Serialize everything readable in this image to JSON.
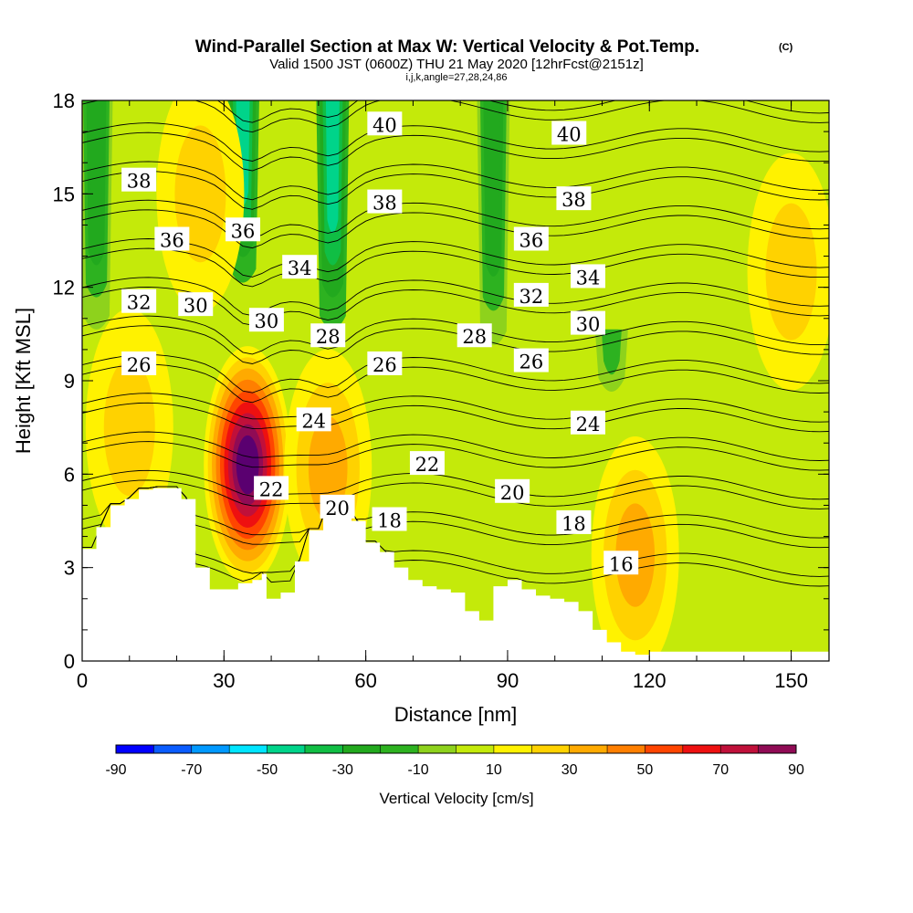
{
  "chart_data": {
    "type": "heatmap",
    "title": "Wind-Parallel Section at Max W: Vertical Velocity & Pot.Temp.",
    "title_mark": "(C)",
    "subtitle": "Valid 1500 JST (0600Z) THU 21 May 2020 [12hrFcst@2151z]",
    "subtitle2": "i,j,k,angle=27,28,24,86",
    "xlabel": "Distance [nm]",
    "ylabel": "Height [Kft MSL]",
    "xlim": [
      0,
      158
    ],
    "ylim": [
      0,
      18
    ],
    "xticks": [
      0,
      30,
      60,
      90,
      120,
      150
    ],
    "yticks": [
      0,
      3,
      6,
      9,
      12,
      15,
      18
    ],
    "colorbar": {
      "title": "Vertical Velocity [cm/s]",
      "ticks": [
        -90,
        -70,
        -50,
        -30,
        -10,
        10,
        30,
        50,
        70,
        90
      ],
      "levels": [
        -90,
        -80,
        -70,
        -60,
        -50,
        -40,
        -30,
        -20,
        -10,
        0,
        10,
        20,
        30,
        40,
        50,
        60,
        70,
        80,
        90
      ],
      "colors": [
        "#0000ff",
        "#0a5cff",
        "#0099ff",
        "#00e5ff",
        "#00d48a",
        "#10be44",
        "#22a91e",
        "#2db220",
        "#8ed21c",
        "#c4ea0a",
        "#fff200",
        "#ffd200",
        "#ffaa00",
        "#ff7f00",
        "#ff4500",
        "#ee1010",
        "#c0103a",
        "#900b55",
        "#5a0070"
      ]
    },
    "background_color": "#c4ea0a",
    "updraft_centers": [
      {
        "x": 35,
        "z": 6.3,
        "w": 85
      },
      {
        "x": 52,
        "z": 6.2,
        "w": 25
      },
      {
        "x": 117,
        "z": 3.4,
        "w": 25
      },
      {
        "x": 10,
        "z": 7.5,
        "w": 20
      },
      {
        "x": 25,
        "z": 15,
        "w": 20
      },
      {
        "x": 150,
        "z": 12.5,
        "w": 15
      }
    ],
    "downdraft_bands": [
      {
        "x": 3,
        "z_top": 18,
        "z_bottom": 10.5,
        "w": -30
      },
      {
        "x": 34,
        "z_top": 18,
        "z_bottom": 12,
        "w": -50
      },
      {
        "x": 53,
        "z_top": 18,
        "z_bottom": 10.5,
        "w": -50
      },
      {
        "x": 87,
        "z_top": 18,
        "z_bottom": 10,
        "w": -30
      },
      {
        "x": 112,
        "z_top": 10.5,
        "z_bottom": 8.5,
        "w": -20
      }
    ],
    "isentropes": [
      16,
      18,
      20,
      22,
      24,
      26,
      28,
      30,
      32,
      34,
      36,
      38,
      40
    ],
    "contour_labels": [
      {
        "text": "40",
        "x": 64,
        "z": 17.2
      },
      {
        "text": "40",
        "x": 103,
        "z": 16.9
      },
      {
        "text": "38",
        "x": 12,
        "z": 15.4
      },
      {
        "text": "38",
        "x": 64,
        "z": 14.7
      },
      {
        "text": "38",
        "x": 104,
        "z": 14.8
      },
      {
        "text": "36",
        "x": 19,
        "z": 13.5
      },
      {
        "text": "36",
        "x": 34,
        "z": 13.8
      },
      {
        "text": "36",
        "x": 95,
        "z": 13.5
      },
      {
        "text": "34",
        "x": 46,
        "z": 12.6
      },
      {
        "text": "34",
        "x": 107,
        "z": 12.3
      },
      {
        "text": "32",
        "x": 12,
        "z": 11.5
      },
      {
        "text": "32",
        "x": 95,
        "z": 11.7
      },
      {
        "text": "30",
        "x": 24,
        "z": 11.4
      },
      {
        "text": "30",
        "x": 39,
        "z": 10.9
      },
      {
        "text": "30",
        "x": 107,
        "z": 10.8
      },
      {
        "text": "28",
        "x": 52,
        "z": 10.4
      },
      {
        "text": "28",
        "x": 83,
        "z": 10.4
      },
      {
        "text": "26",
        "x": 12,
        "z": 9.5
      },
      {
        "text": "26",
        "x": 64,
        "z": 9.5
      },
      {
        "text": "26",
        "x": 95,
        "z": 9.6
      },
      {
        "text": "24",
        "x": 49,
        "z": 7.7
      },
      {
        "text": "24",
        "x": 107,
        "z": 7.6
      },
      {
        "text": "22",
        "x": 40,
        "z": 5.5
      },
      {
        "text": "22",
        "x": 73,
        "z": 6.3
      },
      {
        "text": "20",
        "x": 54,
        "z": 4.9
      },
      {
        "text": "20",
        "x": 91,
        "z": 5.4
      },
      {
        "text": "18",
        "x": 65,
        "z": 4.5
      },
      {
        "text": "18",
        "x": 104,
        "z": 4.4
      },
      {
        "text": "16",
        "x": 114,
        "z": 3.1
      }
    ],
    "terrain": [
      [
        0,
        3.6
      ],
      [
        3,
        4.3
      ],
      [
        6,
        5.0
      ],
      [
        9,
        5.2
      ],
      [
        12,
        5.5
      ],
      [
        15,
        5.55
      ],
      [
        18,
        5.55
      ],
      [
        21,
        5.2
      ],
      [
        24,
        3.0
      ],
      [
        27,
        2.3
      ],
      [
        30,
        2.3
      ],
      [
        33,
        2.5
      ],
      [
        36,
        2.6
      ],
      [
        38,
        2.8
      ],
      [
        39,
        2.0
      ],
      [
        42,
        2.2
      ],
      [
        45,
        3.2
      ],
      [
        48,
        4.2
      ],
      [
        51,
        5.0
      ],
      [
        54,
        5.0
      ],
      [
        57,
        4.5
      ],
      [
        60,
        3.8
      ],
      [
        63,
        3.5
      ],
      [
        66,
        3.0
      ],
      [
        69,
        2.6
      ],
      [
        72,
        2.4
      ],
      [
        75,
        2.3
      ],
      [
        78,
        2.2
      ],
      [
        81,
        1.6
      ],
      [
        84,
        1.3
      ],
      [
        87,
        2.4
      ],
      [
        90,
        2.6
      ],
      [
        93,
        2.3
      ],
      [
        96,
        2.1
      ],
      [
        99,
        2.0
      ],
      [
        102,
        1.9
      ],
      [
        105,
        1.6
      ],
      [
        108,
        1.0
      ],
      [
        111,
        0.6
      ],
      [
        114,
        0.3
      ],
      [
        117,
        0.2
      ],
      [
        120,
        0.3
      ],
      [
        130,
        0.3
      ],
      [
        140,
        0.3
      ],
      [
        150,
        0.3
      ],
      [
        158,
        0.3
      ]
    ]
  }
}
